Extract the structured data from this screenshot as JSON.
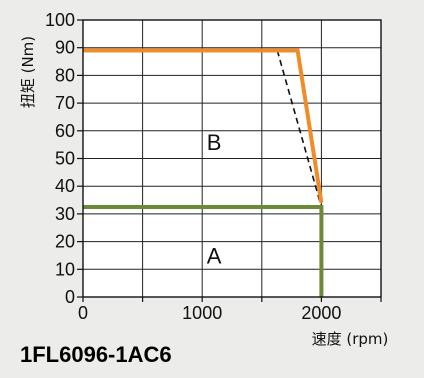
{
  "chart_data": {
    "type": "line",
    "title": "",
    "model_label": "1FL6096-1AC6",
    "xlabel": "速度 (rpm)",
    "ylabel": "扭矩 (Nm)",
    "xlim": [
      0,
      2500
    ],
    "ylim": [
      0,
      100
    ],
    "x_ticks": [
      0,
      1000,
      2000
    ],
    "y_ticks": [
      0,
      10,
      20,
      30,
      40,
      50,
      60,
      70,
      80,
      90,
      100
    ],
    "grid": true,
    "series": [
      {
        "name": "A",
        "color": "#6a8a3a",
        "style": "solid",
        "points": [
          [
            0,
            32.5
          ],
          [
            2000,
            32.5
          ],
          [
            2000,
            0
          ]
        ]
      },
      {
        "name": "B",
        "color": "#f08c2a",
        "style": "solid",
        "points": [
          [
            0,
            89
          ],
          [
            1800,
            89
          ],
          [
            2000,
            34
          ]
        ]
      },
      {
        "name": "",
        "color": "#111111",
        "style": "dashed",
        "points": [
          [
            1630,
            89
          ],
          [
            2000,
            32.5
          ]
        ]
      }
    ],
    "annotations": [
      {
        "text": "B",
        "x": 1100,
        "y": 56
      },
      {
        "text": "A",
        "x": 1100,
        "y": 15
      }
    ]
  }
}
